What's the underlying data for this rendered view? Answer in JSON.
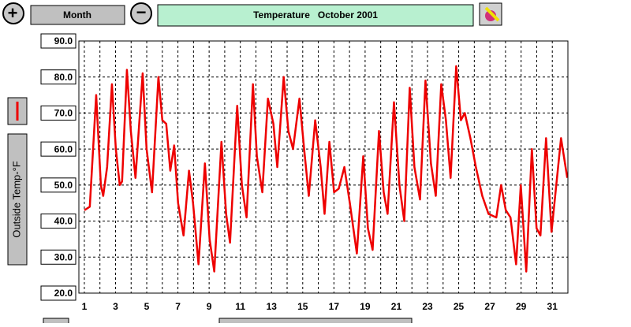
{
  "toolbar": {
    "zoom_in": "+",
    "period": "Month",
    "zoom_out": "−"
  },
  "chart_data": {
    "type": "line",
    "title": "Temperature   October 2001",
    "ylabel": "Outside Temp-°F",
    "xlim": [
      0.65,
      32
    ],
    "ylim": [
      20,
      90
    ],
    "xticks": [
      1,
      3,
      5,
      7,
      9,
      11,
      13,
      15,
      17,
      19,
      21,
      23,
      25,
      27,
      29,
      31
    ],
    "xminor": [
      2,
      4,
      6,
      8,
      10,
      12,
      14,
      16,
      18,
      20,
      22,
      24,
      26,
      28,
      30
    ],
    "yticks": [
      {
        "value": 20,
        "label": "20.0"
      },
      {
        "value": 30,
        "label": "30.0"
      },
      {
        "value": 40,
        "label": "40.0"
      },
      {
        "value": 50,
        "label": "50.0"
      },
      {
        "value": 60,
        "label": "60.0"
      },
      {
        "value": 70,
        "label": "70.0"
      },
      {
        "value": 80,
        "label": "80.0"
      },
      {
        "value": 90,
        "label": "90.0"
      }
    ],
    "grid": true,
    "series": [
      {
        "name": "Outside Temp-°F",
        "color": "#ee0000",
        "x": [
          1.0,
          1.35,
          1.76,
          2.06,
          2.21,
          2.46,
          2.77,
          3.02,
          3.27,
          3.42,
          3.73,
          3.98,
          4.28,
          4.74,
          4.99,
          5.34,
          5.75,
          6.0,
          6.25,
          6.51,
          6.76,
          7.01,
          7.36,
          7.71,
          7.97,
          8.32,
          8.73,
          9.03,
          9.33,
          9.79,
          10.09,
          10.34,
          10.8,
          11.1,
          11.4,
          11.81,
          12.06,
          12.41,
          12.77,
          13.12,
          13.37,
          13.78,
          14.08,
          14.38,
          14.79,
          15.09,
          15.39,
          15.8,
          16.15,
          16.4,
          16.71,
          17.01,
          17.31,
          17.67,
          18.02,
          18.47,
          18.88,
          19.18,
          19.48,
          19.89,
          20.19,
          20.44,
          20.85,
          21.2,
          21.51,
          21.86,
          22.16,
          22.52,
          22.87,
          23.22,
          23.53,
          23.88,
          24.18,
          24.48,
          24.84,
          25.14,
          25.39,
          25.75,
          26.1,
          26.51,
          26.91,
          27.41,
          27.72,
          28.02,
          28.32,
          28.68,
          28.98,
          29.33,
          29.69,
          29.99,
          30.24,
          30.6,
          30.95,
          31.56,
          31.96
        ],
        "values": [
          43,
          44,
          75,
          50,
          47,
          55,
          78,
          60,
          50,
          51,
          82,
          65,
          52,
          81,
          60,
          48,
          80,
          68,
          67,
          54,
          61,
          45,
          36,
          54,
          45,
          28,
          56,
          35,
          26,
          62,
          42,
          34,
          72,
          50,
          41,
          78,
          58,
          48,
          74,
          67,
          55,
          80,
          65,
          60,
          74,
          60,
          47,
          68,
          55,
          42,
          62,
          48,
          49,
          55,
          45,
          31,
          58,
          38,
          32,
          65,
          48,
          42,
          73,
          50,
          40,
          77,
          55,
          46,
          79,
          56,
          47,
          78,
          68,
          52,
          83,
          68,
          70,
          63,
          55,
          47,
          42,
          41,
          50,
          43,
          41,
          28,
          50,
          26,
          60,
          38,
          36,
          63,
          37,
          63,
          52
        ]
      }
    ]
  }
}
